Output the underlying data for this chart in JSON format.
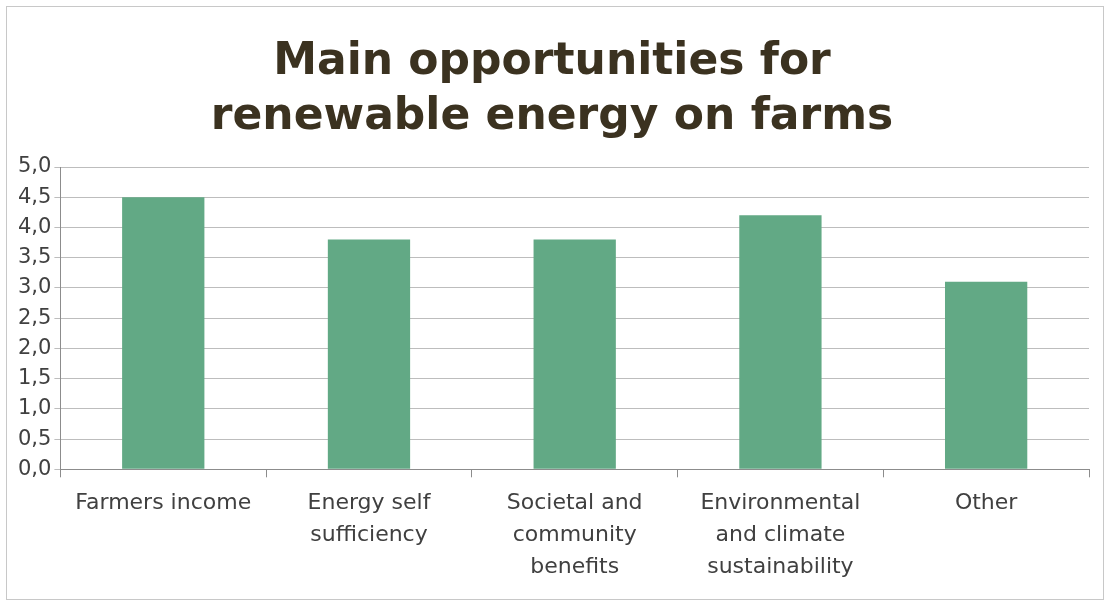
{
  "chart_data": {
    "type": "bar",
    "title": "Main opportunities for renewable energy on farms",
    "categories": [
      "Farmers income",
      "Energy self sufficiency",
      "Societal and community benefits",
      "Environmental and climate sustainability",
      "Other"
    ],
    "values": [
      4.5,
      3.8,
      3.8,
      4.2,
      3.1
    ],
    "color": "#62a985",
    "ylim": [
      0,
      5
    ],
    "yticks": [
      {
        "value": 0,
        "label": "0,0"
      },
      {
        "value": 0.5,
        "label": "0,5"
      },
      {
        "value": 1,
        "label": "1,0"
      },
      {
        "value": 1.5,
        "label": "1,5"
      },
      {
        "value": 2,
        "label": "2,0"
      },
      {
        "value": 2.5,
        "label": "2,5"
      },
      {
        "value": 3,
        "label": "3,0"
      },
      {
        "value": 3.5,
        "label": "3,5"
      },
      {
        "value": 4,
        "label": "4,0"
      },
      {
        "value": 4.5,
        "label": "4,5"
      },
      {
        "value": 5,
        "label": "5,0"
      }
    ],
    "grid": "y"
  }
}
